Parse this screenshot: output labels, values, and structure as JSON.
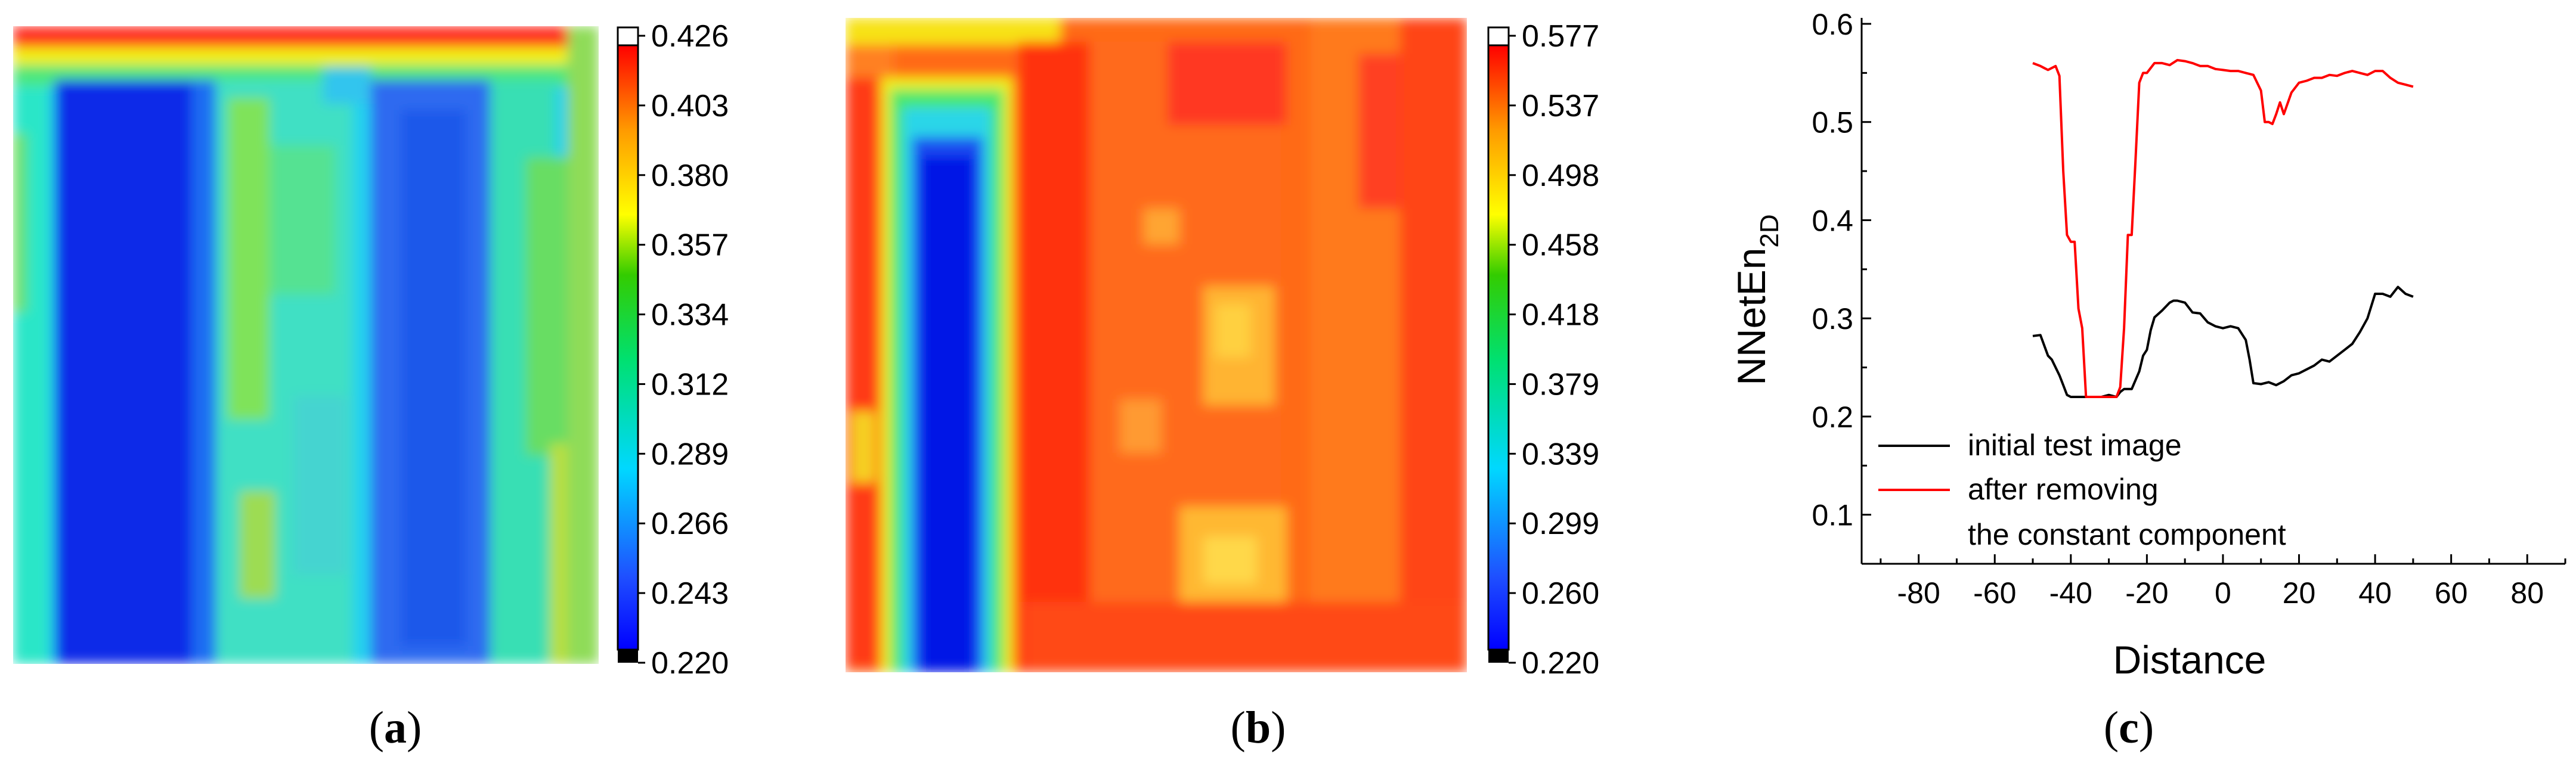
{
  "panels": [
    {
      "id": "a",
      "label_open": "(",
      "label_letter": "a",
      "label_close": ")",
      "colorbar": {
        "ticks": [
          "0.426",
          "0.403",
          "0.380",
          "0.357",
          "0.334",
          "0.312",
          "0.289",
          "0.266",
          "0.243",
          "0.220"
        ],
        "min": 0.22,
        "max": 0.426
      }
    },
    {
      "id": "b",
      "label_open": "(",
      "label_letter": "b",
      "label_close": ")",
      "colorbar": {
        "ticks": [
          "0.577",
          "0.537",
          "0.498",
          "0.458",
          "0.418",
          "0.379",
          "0.339",
          "0.299",
          "0.260",
          "0.220"
        ],
        "min": 0.22,
        "max": 0.577
      }
    },
    {
      "id": "c",
      "label_open": "(",
      "label_letter": "c",
      "label_close": ")"
    }
  ],
  "colors": {
    "colormap": [
      "#000000",
      "#0000ff",
      "#1f5bff",
      "#00d8ff",
      "#00ff66",
      "#33cc00",
      "#ffff00",
      "#ff9900",
      "#ff2200",
      "#ff0000",
      "#ffffff"
    ],
    "initial": "#000000",
    "after": "#ff0000"
  },
  "chart_data": {
    "type": "line",
    "xlabel": "Distance",
    "ylabel_main": "NNetEn",
    "ylabel_sub": "2D",
    "xlim": [
      -95,
      90
    ],
    "ylim": [
      0.05,
      0.6
    ],
    "xticks": [
      -80,
      -60,
      -40,
      -20,
      0,
      20,
      40,
      60,
      80
    ],
    "yticks": [
      0.1,
      0.2,
      0.3,
      0.4,
      0.5,
      0.6
    ],
    "legend_position": "bottom-left",
    "series": [
      {
        "name": "initial test image",
        "x": [
          -50,
          -48,
          -46,
          -45,
          -43,
          -42,
          -41,
          -40,
          -38,
          -36,
          -34,
          -32,
          -30,
          -28,
          -27,
          -26,
          -24,
          -22,
          -21,
          -20,
          -19,
          -18,
          -16,
          -14,
          -13,
          -12,
          -10,
          -8,
          -6,
          -4,
          -2,
          0,
          2,
          4,
          6,
          7,
          8,
          10,
          12,
          14,
          16,
          18,
          20,
          22,
          24,
          26,
          28,
          30,
          32,
          34,
          36,
          38,
          40,
          42,
          44,
          46,
          48,
          50
        ],
        "y": [
          0.282,
          0.283,
          0.262,
          0.258,
          0.242,
          0.232,
          0.222,
          0.22,
          0.22,
          0.22,
          0.22,
          0.22,
          0.222,
          0.22,
          0.225,
          0.228,
          0.228,
          0.246,
          0.262,
          0.268,
          0.288,
          0.301,
          0.308,
          0.316,
          0.318,
          0.318,
          0.316,
          0.306,
          0.305,
          0.296,
          0.292,
          0.29,
          0.292,
          0.29,
          0.278,
          0.258,
          0.234,
          0.233,
          0.235,
          0.232,
          0.236,
          0.242,
          0.244,
          0.248,
          0.252,
          0.258,
          0.256,
          0.262,
          0.268,
          0.274,
          0.286,
          0.3,
          0.325,
          0.325,
          0.322,
          0.332,
          0.325,
          0.322
        ]
      },
      {
        "name": "after removing\nthe constant component",
        "x": [
          -50,
          -48,
          -46,
          -44,
          -43,
          -42,
          -41,
          -40,
          -39,
          -38,
          -37,
          -36,
          -34,
          -32,
          -30,
          -28,
          -27,
          -26,
          -25,
          -24,
          -23,
          -22,
          -21,
          -20,
          -18,
          -16,
          -14,
          -12,
          -10,
          -8,
          -6,
          -4,
          -2,
          0,
          2,
          4,
          6,
          8,
          10,
          11,
          12,
          13,
          14,
          15,
          16,
          18,
          20,
          22,
          24,
          26,
          28,
          30,
          32,
          34,
          36,
          38,
          40,
          42,
          44,
          46,
          48,
          50
        ],
        "y": [
          0.56,
          0.557,
          0.553,
          0.557,
          0.547,
          0.45,
          0.385,
          0.378,
          0.378,
          0.31,
          0.29,
          0.22,
          0.22,
          0.22,
          0.22,
          0.22,
          0.23,
          0.29,
          0.385,
          0.385,
          0.46,
          0.54,
          0.55,
          0.55,
          0.56,
          0.56,
          0.558,
          0.563,
          0.562,
          0.56,
          0.557,
          0.557,
          0.554,
          0.553,
          0.552,
          0.552,
          0.55,
          0.548,
          0.532,
          0.5,
          0.5,
          0.498,
          0.508,
          0.52,
          0.508,
          0.53,
          0.54,
          0.542,
          0.545,
          0.545,
          0.548,
          0.547,
          0.55,
          0.552,
          0.55,
          0.548,
          0.552,
          0.552,
          0.545,
          0.54,
          0.538,
          0.536
        ]
      }
    ]
  }
}
